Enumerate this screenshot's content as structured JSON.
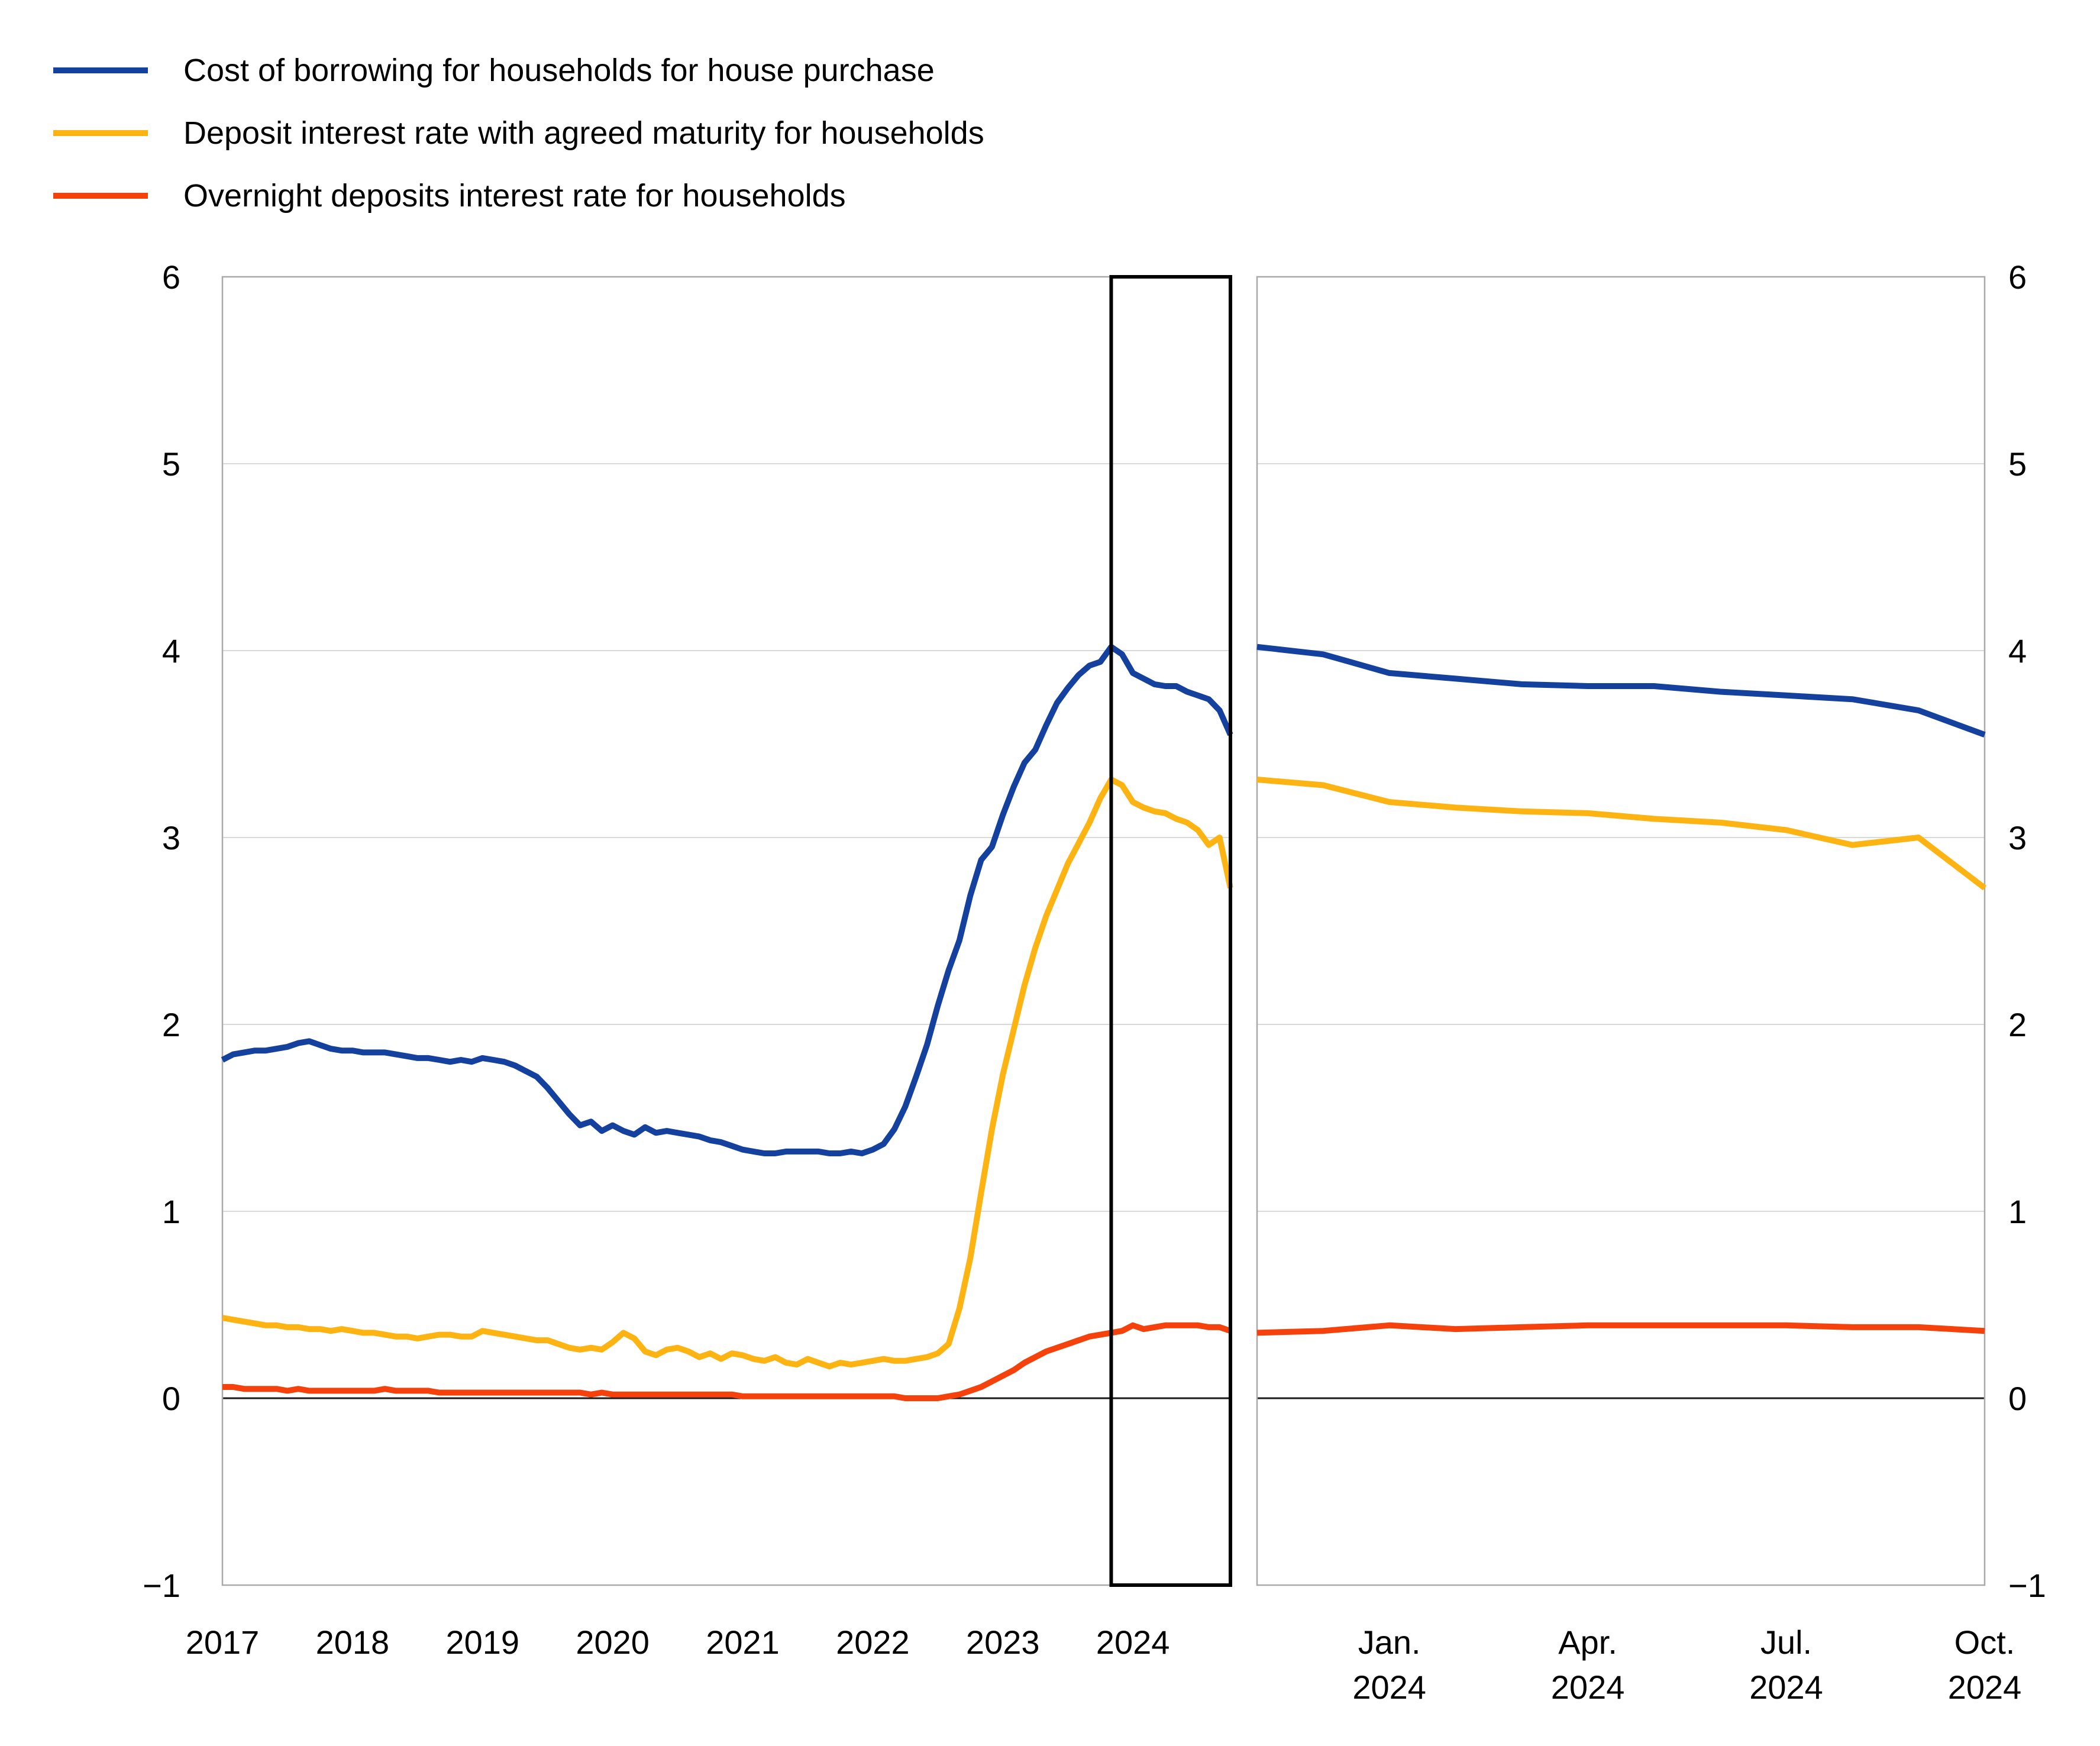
{
  "legend": {
    "position": "top-left",
    "items": [
      {
        "label": "Cost of borrowing for households for house purchase",
        "color": "#14409e"
      },
      {
        "label": "Deposit interest rate with agreed maturity for households",
        "color": "#fdb413"
      },
      {
        "label": "Overnight deposits interest rate for households",
        "color": "#f5420d"
      }
    ]
  },
  "y_axis": {
    "ticks": [
      "6",
      "5",
      "4",
      "3",
      "2",
      "1",
      "0",
      "−1"
    ],
    "min": -1,
    "max": 6,
    "shown_on": "both-sides"
  },
  "chart_data": [
    {
      "type": "line",
      "panel": "left",
      "title": "",
      "xlabel": "",
      "ylabel": "",
      "x_start": "2017-01",
      "x_end": "2024-10",
      "ylim": [
        -1,
        6
      ],
      "grid": true,
      "zero_line": true,
      "highlight_box": {
        "start_index": 82,
        "end_index": 93
      },
      "x_ticks": [
        {
          "label": "2017",
          "index": 0
        },
        {
          "label": "2018",
          "index": 12
        },
        {
          "label": "2019",
          "index": 24
        },
        {
          "label": "2020",
          "index": 36
        },
        {
          "label": "2021",
          "index": 48
        },
        {
          "label": "2022",
          "index": 60
        },
        {
          "label": "2023",
          "index": 72
        },
        {
          "label": "2024",
          "index": 84
        }
      ],
      "series": [
        {
          "name": "Cost of borrowing for households for house purchase",
          "color": "#14409e",
          "values": [
            1.81,
            1.84,
            1.85,
            1.86,
            1.86,
            1.87,
            1.88,
            1.9,
            1.91,
            1.89,
            1.87,
            1.86,
            1.86,
            1.85,
            1.85,
            1.85,
            1.84,
            1.83,
            1.82,
            1.82,
            1.81,
            1.8,
            1.81,
            1.8,
            1.82,
            1.81,
            1.8,
            1.78,
            1.75,
            1.72,
            1.66,
            1.59,
            1.52,
            1.46,
            1.48,
            1.43,
            1.46,
            1.43,
            1.41,
            1.45,
            1.42,
            1.43,
            1.42,
            1.41,
            1.4,
            1.38,
            1.37,
            1.35,
            1.33,
            1.32,
            1.31,
            1.31,
            1.32,
            1.32,
            1.32,
            1.32,
            1.31,
            1.31,
            1.32,
            1.31,
            1.33,
            1.36,
            1.44,
            1.56,
            1.72,
            1.89,
            2.1,
            2.29,
            2.45,
            2.69,
            2.88,
            2.95,
            3.12,
            3.27,
            3.4,
            3.47,
            3.6,
            3.72,
            3.8,
            3.87,
            3.92,
            3.94,
            4.02,
            3.98,
            3.88,
            3.85,
            3.82,
            3.81,
            3.81,
            3.78,
            3.76,
            3.74,
            3.68,
            3.55
          ]
        },
        {
          "name": "Deposit interest rate with agreed maturity for households",
          "color": "#fdb413",
          "values": [
            0.43,
            0.42,
            0.41,
            0.4,
            0.39,
            0.39,
            0.38,
            0.38,
            0.37,
            0.37,
            0.36,
            0.37,
            0.36,
            0.35,
            0.35,
            0.34,
            0.33,
            0.33,
            0.32,
            0.33,
            0.34,
            0.34,
            0.33,
            0.33,
            0.36,
            0.35,
            0.34,
            0.33,
            0.32,
            0.31,
            0.31,
            0.29,
            0.27,
            0.26,
            0.27,
            0.26,
            0.3,
            0.35,
            0.32,
            0.25,
            0.23,
            0.26,
            0.27,
            0.25,
            0.22,
            0.24,
            0.21,
            0.24,
            0.23,
            0.21,
            0.2,
            0.22,
            0.19,
            0.18,
            0.21,
            0.19,
            0.17,
            0.19,
            0.18,
            0.19,
            0.2,
            0.21,
            0.2,
            0.2,
            0.21,
            0.22,
            0.24,
            0.29,
            0.48,
            0.75,
            1.1,
            1.44,
            1.73,
            1.97,
            2.21,
            2.41,
            2.58,
            2.72,
            2.86,
            2.97,
            3.08,
            3.21,
            3.31,
            3.28,
            3.19,
            3.16,
            3.14,
            3.13,
            3.1,
            3.08,
            3.04,
            2.96,
            3.0,
            2.73
          ]
        },
        {
          "name": "Overnight deposits interest rate for households",
          "color": "#f5420d",
          "values": [
            0.06,
            0.06,
            0.05,
            0.05,
            0.05,
            0.05,
            0.04,
            0.05,
            0.04,
            0.04,
            0.04,
            0.04,
            0.04,
            0.04,
            0.04,
            0.05,
            0.04,
            0.04,
            0.04,
            0.04,
            0.03,
            0.03,
            0.03,
            0.03,
            0.03,
            0.03,
            0.03,
            0.03,
            0.03,
            0.03,
            0.03,
            0.03,
            0.03,
            0.03,
            0.02,
            0.03,
            0.02,
            0.02,
            0.02,
            0.02,
            0.02,
            0.02,
            0.02,
            0.02,
            0.02,
            0.02,
            0.02,
            0.02,
            0.01,
            0.01,
            0.01,
            0.01,
            0.01,
            0.01,
            0.01,
            0.01,
            0.01,
            0.01,
            0.01,
            0.01,
            0.01,
            0.01,
            0.01,
            0.0,
            0.0,
            0.0,
            0.0,
            0.01,
            0.02,
            0.04,
            0.06,
            0.09,
            0.12,
            0.15,
            0.19,
            0.22,
            0.25,
            0.27,
            0.29,
            0.31,
            0.33,
            0.34,
            0.35,
            0.36,
            0.39,
            0.37,
            0.38,
            0.39,
            0.39,
            0.39,
            0.39,
            0.38,
            0.38,
            0.36
          ]
        }
      ]
    },
    {
      "type": "line",
      "panel": "right",
      "title": "",
      "xlabel": "",
      "ylabel": "",
      "x_start": "2023-11",
      "x_end": "2024-10",
      "ylim": [
        -1,
        6
      ],
      "grid": true,
      "zero_line": true,
      "x_ticks": [
        {
          "label": [
            "Jan.",
            "2024"
          ],
          "index": 2
        },
        {
          "label": [
            "Apr.",
            "2024"
          ],
          "index": 5
        },
        {
          "label": [
            "Jul.",
            "2024"
          ],
          "index": 8
        },
        {
          "label": [
            "Oct.",
            "2024"
          ],
          "index": 11
        }
      ],
      "series": [
        {
          "name": "Cost of borrowing for households for house purchase",
          "color": "#14409e",
          "values": [
            4.02,
            3.98,
            3.88,
            3.85,
            3.82,
            3.81,
            3.81,
            3.78,
            3.76,
            3.74,
            3.68,
            3.55
          ]
        },
        {
          "name": "Deposit interest rate with agreed maturity for households",
          "color": "#fdb413",
          "values": [
            3.31,
            3.28,
            3.19,
            3.16,
            3.14,
            3.13,
            3.1,
            3.08,
            3.04,
            2.96,
            3.0,
            2.73
          ]
        },
        {
          "name": "Overnight deposits interest rate for households",
          "color": "#f5420d",
          "values": [
            0.35,
            0.36,
            0.39,
            0.37,
            0.38,
            0.39,
            0.39,
            0.39,
            0.39,
            0.38,
            0.38,
            0.36
          ]
        }
      ]
    }
  ]
}
